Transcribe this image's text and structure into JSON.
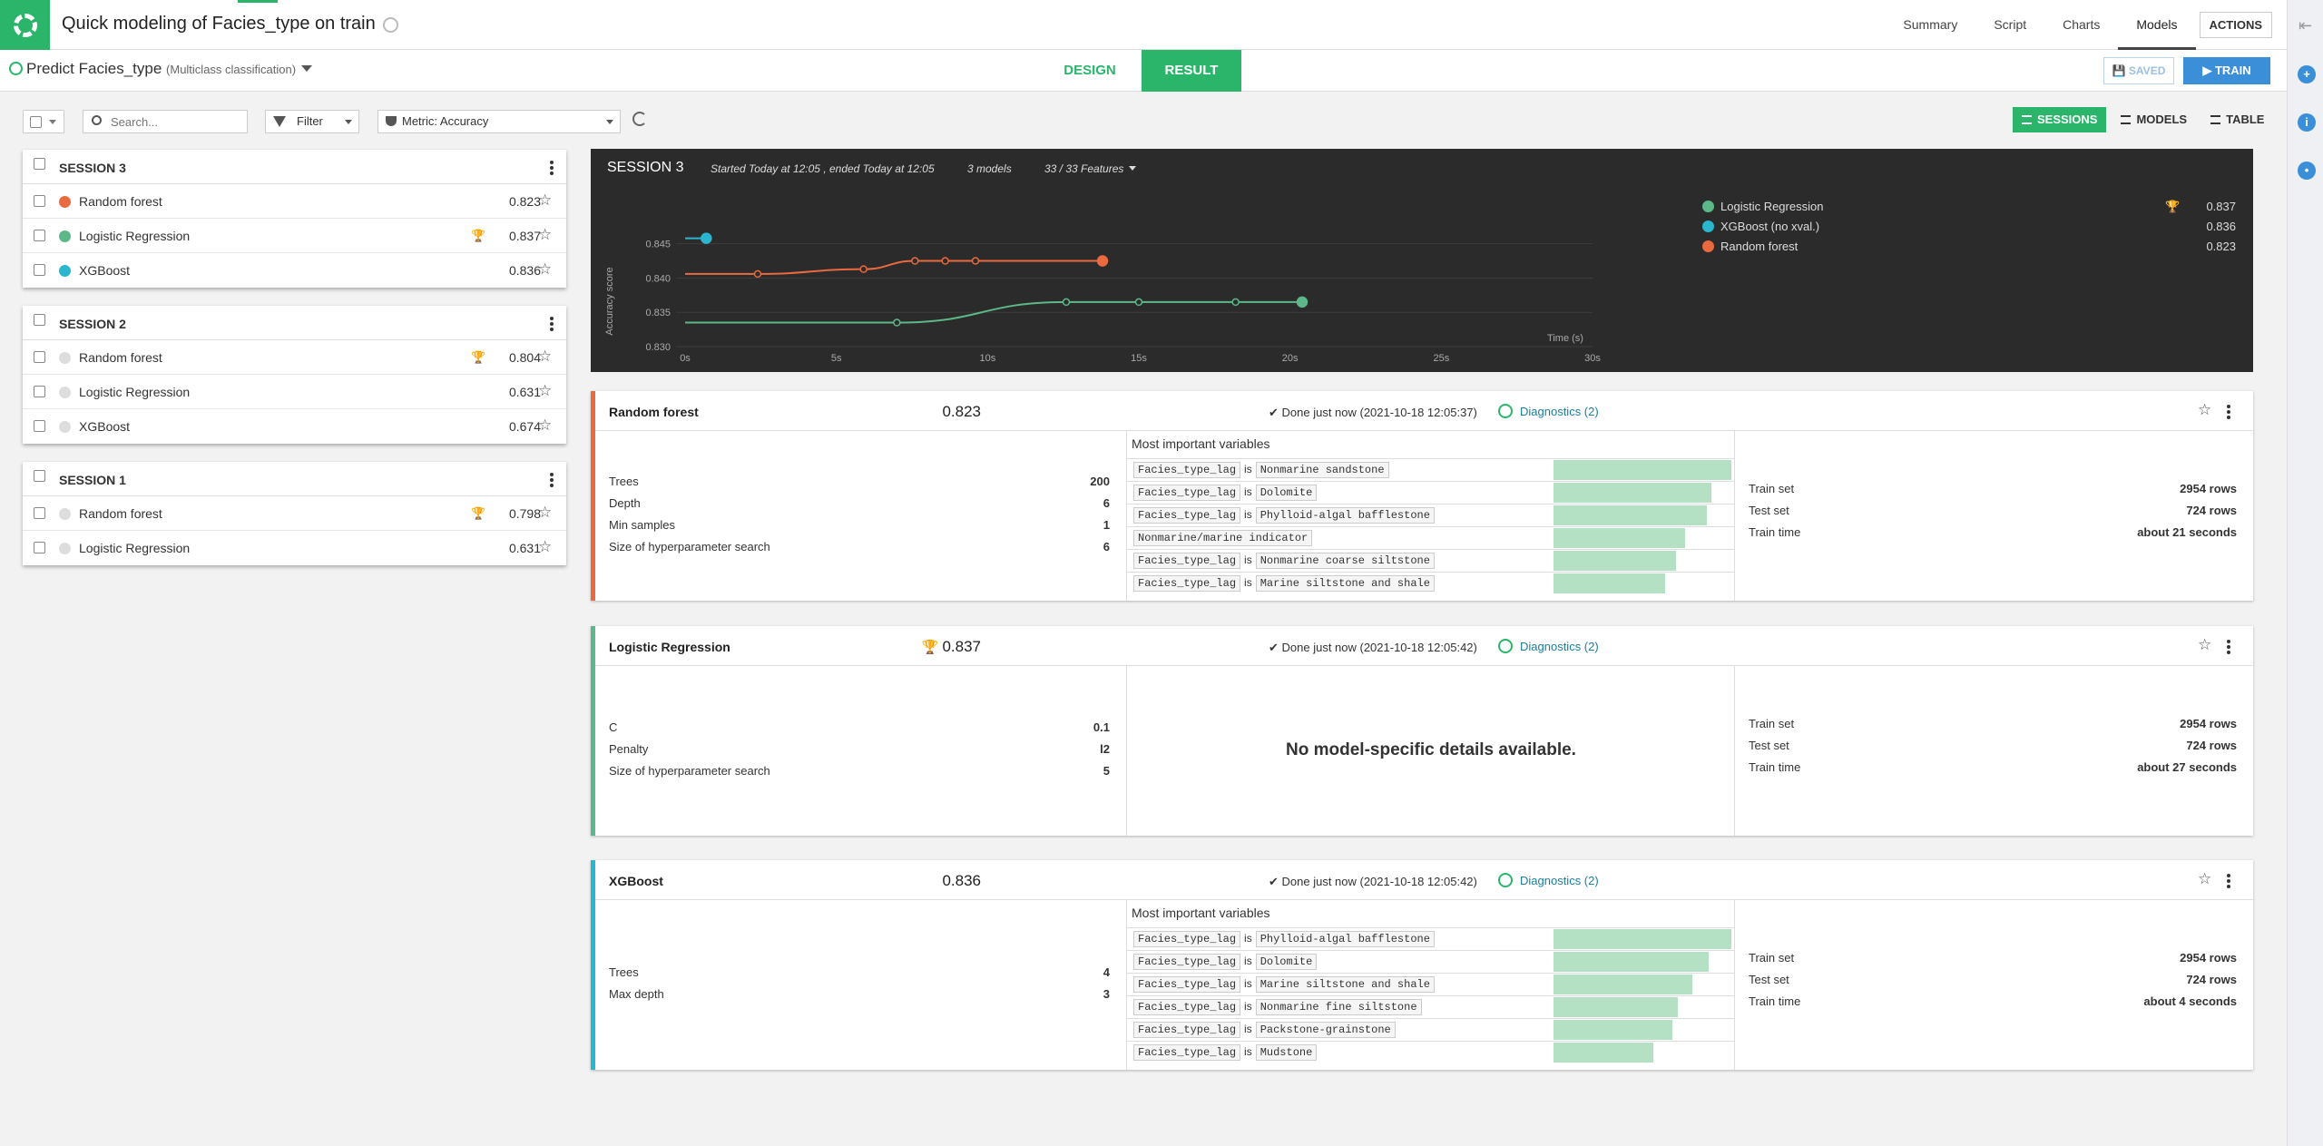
{
  "header": {
    "title": "Quick modeling of Facies_type on train",
    "nav": [
      "Summary",
      "Script",
      "Charts",
      "Models"
    ],
    "active_nav": "Models",
    "actions_label": "ACTIONS"
  },
  "subheader": {
    "predict_label": "Predict Facies_type",
    "predict_type": "(Multiclass classification)",
    "tabs": {
      "design": "DESIGN",
      "result": "RESULT"
    },
    "saved_label": "SAVED",
    "train_label": "TRAIN"
  },
  "toolbar": {
    "search_placeholder": "Search...",
    "filter_label": "Filter",
    "metric_label": "Metric: Accuracy",
    "views": {
      "sessions": "SESSIONS",
      "models": "MODELS",
      "table": "TABLE"
    }
  },
  "sessions": [
    {
      "title": "SESSION 3",
      "models": [
        {
          "name": "Random forest",
          "score": "0.823",
          "color": "#e86a3e",
          "best": false
        },
        {
          "name": "Logistic Regression",
          "score": "0.837",
          "color": "#5cb88a",
          "best": true
        },
        {
          "name": "XGBoost",
          "score": "0.836",
          "color": "#2bb6d0",
          "best": false
        }
      ]
    },
    {
      "title": "SESSION 2",
      "models": [
        {
          "name": "Random forest",
          "score": "0.804",
          "color": "#dddddd",
          "best": true
        },
        {
          "name": "Logistic Regression",
          "score": "0.631",
          "color": "#dddddd",
          "best": false
        },
        {
          "name": "XGBoost",
          "score": "0.674",
          "color": "#dddddd",
          "best": false
        }
      ]
    },
    {
      "title": "SESSION 1",
      "models": [
        {
          "name": "Random forest",
          "score": "0.798",
          "color": "#dddddd",
          "best": true
        },
        {
          "name": "Logistic Regression",
          "score": "0.631",
          "color": "#dddddd",
          "best": false
        }
      ]
    }
  ],
  "session_chart": {
    "title": "SESSION 3",
    "started": "Started Today at 12:05 , ended Today at 12:05",
    "models_count": "3 models",
    "features": "33 / 33 Features",
    "legend": [
      {
        "name": "Logistic Regression",
        "score": "0.837",
        "color": "#5cb88a",
        "best": true
      },
      {
        "name": "XGBoost (no xval.)",
        "score": "0.836",
        "color": "#2bb6d0",
        "best": false
      },
      {
        "name": "Random forest",
        "score": "0.823",
        "color": "#e86a3e",
        "best": false
      }
    ]
  },
  "chart_data": {
    "type": "line",
    "title": "",
    "xlabel": "Time (s)",
    "ylabel": "Accuracy score",
    "xlim": [
      0,
      30
    ],
    "ylim": [
      0.83,
      0.848
    ],
    "x_ticks": [
      "0s",
      "5s",
      "10s",
      "15s",
      "20s",
      "25s",
      "30s"
    ],
    "y_ticks": [
      "0.830",
      "0.835",
      "0.840",
      "0.845"
    ],
    "grid": true,
    "series": [
      {
        "name": "Logistic Regression",
        "color": "#5cb88a",
        "x": [
          0,
          7.0,
          12.6,
          15.0,
          18.2,
          20.4
        ],
        "y": [
          0.8335,
          0.8335,
          0.8365,
          0.8365,
          0.8365,
          0.8365
        ]
      },
      {
        "name": "XGBoost (no xval.)",
        "color": "#2bb6d0",
        "x": [
          0,
          0.7
        ],
        "y": [
          0.8458,
          0.8458
        ]
      },
      {
        "name": "Random forest",
        "color": "#e86a3e",
        "x": [
          0,
          2.4,
          5.9,
          7.6,
          8.6,
          9.6,
          13.8
        ],
        "y": [
          0.8406,
          0.8406,
          0.8413,
          0.8425,
          0.8425,
          0.8425,
          0.8425
        ]
      }
    ]
  },
  "model_cards": [
    {
      "name": "Random forest",
      "score": "0.823",
      "best": false,
      "color": "#e86a3e",
      "done": "✔ Done just now (2021-10-18 12:05:37)",
      "diagnostics": "Diagnostics (2)",
      "params": [
        {
          "k": "Trees",
          "v": "200"
        },
        {
          "k": "Depth",
          "v": "6"
        },
        {
          "k": "Min samples",
          "v": "1"
        },
        {
          "k": "Size of hyperparameter search",
          "v": "6"
        }
      ],
      "miv_title": "Most important variables",
      "variables": [
        {
          "left": "Facies_type_lag",
          "right": "Nonmarine sandstone",
          "importance": 1.0
        },
        {
          "left": "Facies_type_lag",
          "right": "Dolomite",
          "importance": 0.89
        },
        {
          "left": "Facies_type_lag",
          "right": "Phylloid-algal bafflestone",
          "importance": 0.86
        },
        {
          "left": "Nonmarine/marine indicator",
          "right": "",
          "importance": 0.74
        },
        {
          "left": "Facies_type_lag",
          "right": "Nonmarine coarse siltstone",
          "importance": 0.69
        },
        {
          "left": "Facies_type_lag",
          "right": "Marine siltstone and shale",
          "importance": 0.63
        }
      ],
      "no_details": "",
      "train": [
        {
          "k": "Train set",
          "v": "2954 rows"
        },
        {
          "k": "Test set",
          "v": "724 rows"
        },
        {
          "k": "Train time",
          "v": "about 21 seconds"
        }
      ]
    },
    {
      "name": "Logistic Regression",
      "score": "0.837",
      "best": true,
      "color": "#5cb88a",
      "done": "✔ Done just now (2021-10-18 12:05:42)",
      "diagnostics": "Diagnostics (2)",
      "params": [
        {
          "k": "C",
          "v": "0.1"
        },
        {
          "k": "Penalty",
          "v": "l2"
        },
        {
          "k": "Size of hyperparameter search",
          "v": "5"
        }
      ],
      "miv_title": "",
      "variables": [],
      "no_details": "No model-specific details available.",
      "train": [
        {
          "k": "Train set",
          "v": "2954 rows"
        },
        {
          "k": "Test set",
          "v": "724 rows"
        },
        {
          "k": "Train time",
          "v": "about 27 seconds"
        }
      ]
    },
    {
      "name": "XGBoost",
      "score": "0.836",
      "best": false,
      "color": "#2bb6d0",
      "done": "✔ Done just now (2021-10-18 12:05:42)",
      "diagnostics": "Diagnostics (2)",
      "params": [
        {
          "k": "Trees",
          "v": "4"
        },
        {
          "k": "Max depth",
          "v": "3"
        }
      ],
      "miv_title": "Most important variables",
      "variables": [
        {
          "left": "Facies_type_lag",
          "right": "Phylloid-algal bafflestone",
          "importance": 1.0
        },
        {
          "left": "Facies_type_lag",
          "right": "Dolomite",
          "importance": 0.87
        },
        {
          "left": "Facies_type_lag",
          "right": "Marine siltstone and shale",
          "importance": 0.78
        },
        {
          "left": "Facies_type_lag",
          "right": "Nonmarine fine siltstone",
          "importance": 0.7
        },
        {
          "left": "Facies_type_lag",
          "right": "Packstone-grainstone",
          "importance": 0.67
        },
        {
          "left": "Facies_type_lag",
          "right": "Mudstone",
          "importance": 0.56
        }
      ],
      "no_details": "",
      "train": [
        {
          "k": "Train set",
          "v": "2954 rows"
        },
        {
          "k": "Test set",
          "v": "724 rows"
        },
        {
          "k": "Train time",
          "v": "about 4 seconds"
        }
      ]
    }
  ]
}
